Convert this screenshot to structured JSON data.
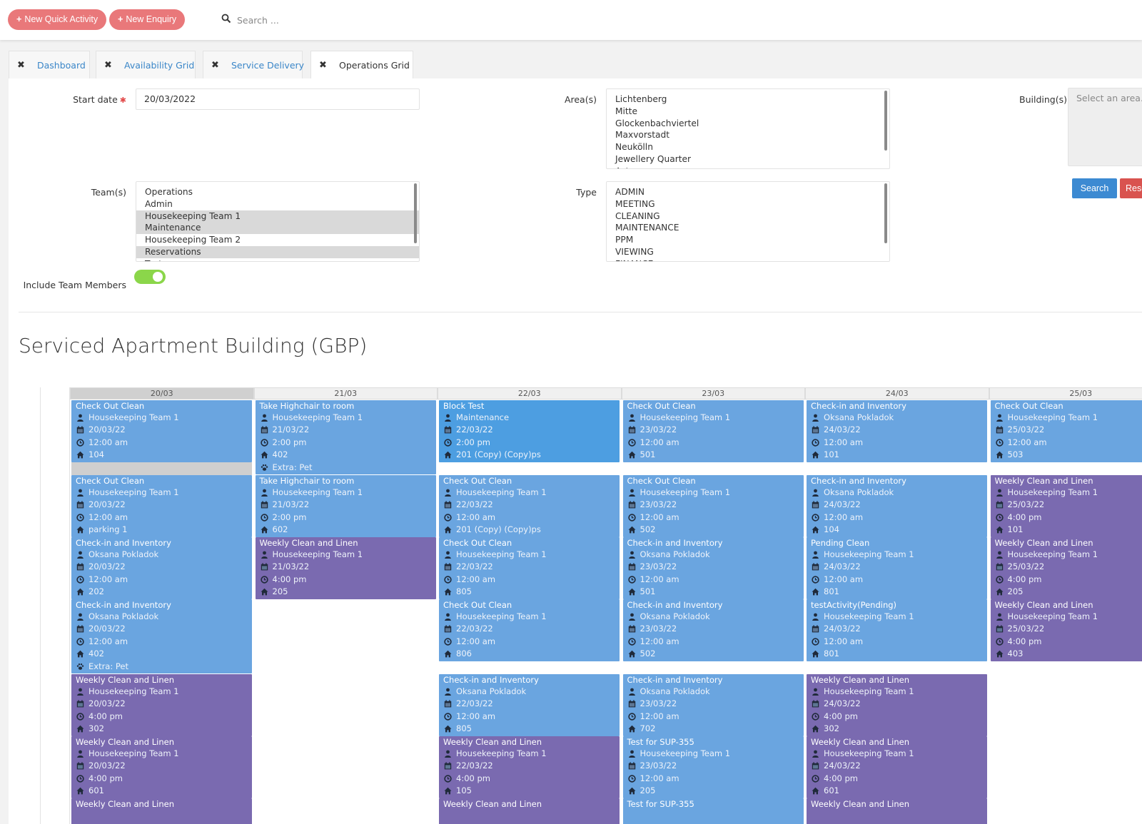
{
  "toolbar": {
    "new_quick_activity": "New Quick Activity",
    "new_enquiry": "New Enquiry",
    "search_placeholder": "Search ..."
  },
  "tabs": [
    {
      "label": "Dashboard"
    },
    {
      "label": "Availability Grid"
    },
    {
      "label": "Service Delivery"
    },
    {
      "label": "Operations Grid"
    }
  ],
  "filters": {
    "start_date_label": "Start date",
    "start_date_value": "20/03/2022",
    "areas_label": "Area(s)",
    "areas": [
      "Lichtenberg",
      "Mitte",
      "Glockenbachviertel",
      "Maxvorstadt",
      "Neukölln",
      "Jewellery Quarter",
      "Aston"
    ],
    "buildings_label": "Building(s)",
    "buildings_placeholder": "Select an area...",
    "teams_label": "Team(s)",
    "teams": [
      {
        "name": "Operations",
        "selected": false
      },
      {
        "name": "Admin",
        "selected": false
      },
      {
        "name": "Housekeeping Team 1",
        "selected": true
      },
      {
        "name": "Maintenance",
        "selected": true
      },
      {
        "name": "Housekeeping Team 2",
        "selected": false
      },
      {
        "name": "Reservations",
        "selected": true
      },
      {
        "name": "Test",
        "selected": false
      }
    ],
    "type_label": "Type",
    "types": [
      "ADMIN",
      "MEETING",
      "CLEANING",
      "MAINTENANCE",
      "PPM",
      "VIEWING",
      "FINANCE"
    ],
    "include_team_members_label": "Include Team Members",
    "include_team_members": true,
    "search_button": "Search",
    "reset_button": "Reset"
  },
  "page_title": "Serviced Apartment Building (GBP)",
  "colors": {
    "accent_pill": "#e9787a",
    "card_blue": "#6aa5e0",
    "card_purple": "#7a6ab0",
    "toggle_on": "#8bd64a",
    "search_btn": "#3c8ad2"
  },
  "days": [
    {
      "date": "20/03",
      "today": true,
      "cards": [
        {
          "title": "Check Out Clean",
          "team": "Housekeeping Team 1",
          "date": "20/03/22",
          "time": "12:00 am",
          "room": "104",
          "color": "blue"
        },
        {
          "title": "Check Out Clean",
          "team": "Housekeeping Team 1",
          "date": "20/03/22",
          "time": "12:00 am",
          "room": "parking 1",
          "color": "blue"
        },
        {
          "title": "Check-in and Inventory",
          "team": "Oksana Pokladok",
          "date": "20/03/22",
          "time": "12:00 am",
          "room": "202",
          "color": "blue"
        },
        {
          "title": "Check-in and Inventory",
          "team": "Oksana Pokladok",
          "date": "20/03/22",
          "time": "12:00 am",
          "room": "402",
          "extra": "Extra: Pet",
          "color": "blue"
        },
        {
          "title": "Weekly Clean and Linen",
          "team": "Housekeeping Team 1",
          "date": "20/03/22",
          "time": "4:00 pm",
          "room": "302",
          "color": "purple"
        },
        {
          "title": "Weekly Clean and Linen",
          "team": "Housekeeping Team 1",
          "date": "20/03/22",
          "time": "4:00 pm",
          "room": "601",
          "color": "purple"
        },
        {
          "title": "Weekly Clean and Linen",
          "team": "",
          "date": "",
          "time": "",
          "room": "",
          "color": "purple"
        }
      ]
    },
    {
      "date": "21/03",
      "today": false,
      "cards": [
        {
          "title": "Take Highchair to room",
          "team": "Housekeeping Team 1",
          "date": "21/03/22",
          "time": "2:00 pm",
          "room": "402",
          "extra": "Extra: Pet",
          "color": "blue"
        },
        {
          "title": "Take Highchair to room",
          "team": "Housekeeping Team 1",
          "date": "21/03/22",
          "time": "2:00 pm",
          "room": "602",
          "color": "blue"
        },
        {
          "title": "Weekly Clean and Linen",
          "team": "Housekeeping Team 1",
          "date": "21/03/22",
          "time": "4:00 pm",
          "room": "205",
          "color": "purple"
        }
      ]
    },
    {
      "date": "22/03",
      "today": false,
      "cards": [
        {
          "title": "Block Test",
          "team": "Maintenance",
          "date": "22/03/22",
          "time": "2:00 pm",
          "room": "201 (Copy) (Copy)ps",
          "color": "blue2"
        },
        {
          "title": "Check Out Clean",
          "team": "Housekeeping Team 1",
          "date": "22/03/22",
          "time": "12:00 am",
          "room": "201 (Copy) (Copy)ps",
          "color": "blue"
        },
        {
          "title": "Check Out Clean",
          "team": "Housekeeping Team 1",
          "date": "22/03/22",
          "time": "12:00 am",
          "room": "805",
          "color": "blue"
        },
        {
          "title": "Check Out Clean",
          "team": "Housekeeping Team 1",
          "date": "22/03/22",
          "time": "12:00 am",
          "room": "806",
          "color": "blue"
        },
        {
          "title": "Check-in and Inventory",
          "team": "Oksana Pokladok",
          "date": "22/03/22",
          "time": "12:00 am",
          "room": "805",
          "color": "blue"
        },
        {
          "title": "Weekly Clean and Linen",
          "team": "Housekeeping Team 1",
          "date": "22/03/22",
          "time": "4:00 pm",
          "room": "105",
          "color": "purple"
        },
        {
          "title": "Weekly Clean and Linen",
          "team": "",
          "date": "",
          "time": "",
          "room": "",
          "color": "purple"
        }
      ]
    },
    {
      "date": "23/03",
      "today": false,
      "cards": [
        {
          "title": "Check Out Clean",
          "team": "Housekeeping Team 1",
          "date": "23/03/22",
          "time": "12:00 am",
          "room": "501",
          "color": "blue"
        },
        {
          "title": "Check Out Clean",
          "team": "Housekeeping Team 1",
          "date": "23/03/22",
          "time": "12:00 am",
          "room": "502",
          "color": "blue"
        },
        {
          "title": "Check-in and Inventory",
          "team": "Oksana Pokladok",
          "date": "23/03/22",
          "time": "12:00 am",
          "room": "501",
          "color": "blue"
        },
        {
          "title": "Check-in and Inventory",
          "team": "Oksana Pokladok",
          "date": "23/03/22",
          "time": "12:00 am",
          "room": "502",
          "color": "blue"
        },
        {
          "title": "Check-in and Inventory",
          "team": "Oksana Pokladok",
          "date": "23/03/22",
          "time": "12:00 am",
          "room": "702",
          "color": "blue"
        },
        {
          "title": "Test for SUP-355",
          "team": "Housekeeping Team 1",
          "date": "23/03/22",
          "time": "12:00 am",
          "room": "205",
          "color": "blue"
        },
        {
          "title": "Test for SUP-355",
          "team": "",
          "date": "",
          "time": "",
          "room": "",
          "color": "blue"
        }
      ]
    },
    {
      "date": "24/03",
      "today": false,
      "cards": [
        {
          "title": "Check-in and Inventory",
          "team": "Oksana Pokladok",
          "date": "24/03/22",
          "time": "12:00 am",
          "room": "101",
          "color": "blue"
        },
        {
          "title": "Check-in and Inventory",
          "team": "Oksana Pokladok",
          "date": "24/03/22",
          "time": "12:00 am",
          "room": "104",
          "color": "blue"
        },
        {
          "title": "Pending Clean",
          "team": "Housekeeping Team 1",
          "date": "24/03/22",
          "time": "12:00 am",
          "room": "801",
          "color": "blue"
        },
        {
          "title": "testActivity(Pending)",
          "team": "Housekeeping Team 1",
          "date": "24/03/22",
          "time": "12:00 am",
          "room": "801",
          "color": "blue"
        },
        {
          "title": "Weekly Clean and Linen",
          "team": "Housekeeping Team 1",
          "date": "24/03/22",
          "time": "4:00 pm",
          "room": "302",
          "color": "purple"
        },
        {
          "title": "Weekly Clean and Linen",
          "team": "Housekeeping Team 1",
          "date": "24/03/22",
          "time": "4:00 pm",
          "room": "601",
          "color": "purple"
        },
        {
          "title": "Weekly Clean and Linen",
          "team": "",
          "date": "",
          "time": "",
          "room": "",
          "color": "purple"
        }
      ]
    },
    {
      "date": "25/03",
      "today": false,
      "cards": [
        {
          "title": "Check Out Clean",
          "team": "Housekeeping Team 1",
          "date": "25/03/22",
          "time": "12:00 am",
          "room": "503",
          "color": "blue"
        },
        {
          "title": "Weekly Clean and Linen",
          "team": "Housekeeping Team 1",
          "date": "25/03/22",
          "time": "4:00 pm",
          "room": "101",
          "color": "purple"
        },
        {
          "title": "Weekly Clean and Linen",
          "team": "Housekeeping Team 1",
          "date": "25/03/22",
          "time": "4:00 pm",
          "room": "205",
          "color": "purple"
        },
        {
          "title": "Weekly Clean and Linen",
          "team": "Housekeeping Team 1",
          "date": "25/03/22",
          "time": "4:00 pm",
          "room": "403",
          "color": "purple"
        }
      ]
    }
  ]
}
